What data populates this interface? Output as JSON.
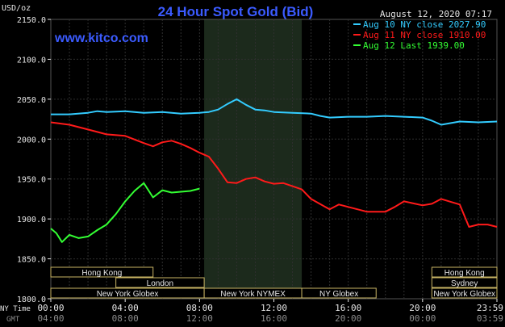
{
  "chart_data": {
    "type": "line",
    "title": "24 Hour Spot Gold (Bid)",
    "watermark": "www.kitco.com",
    "timestamp": "August 12, 2020 07:17",
    "ylabel": "USD/oz",
    "ylim": [
      1800,
      2150
    ],
    "yticks": [
      "1800.0",
      "1850.0",
      "1900.0",
      "1950.0",
      "2000.0",
      "2050.0",
      "2100.0",
      "2150.0"
    ],
    "xlim": [
      0,
      24
    ],
    "x_label_ny": "NY Time",
    "x_label_gmt": "GMT",
    "xticks_ny": [
      "00:00",
      "04:00",
      "08:00",
      "12:00",
      "16:00",
      "20:00",
      "23:59"
    ],
    "xticks_gmt": [
      "04:00",
      "08:00",
      "12:00",
      "16:00",
      "20:00",
      "00:00",
      "03:59"
    ],
    "grid": true,
    "legend_position": "top-right",
    "shaded_session": {
      "start": 8.25,
      "end": 13.5
    },
    "series": [
      {
        "name": "Aug 10 NY close 2027.90",
        "color": "#33ccff",
        "points": [
          [
            0,
            2031
          ],
          [
            1,
            2031
          ],
          [
            2,
            2033
          ],
          [
            2.5,
            2035
          ],
          [
            3,
            2034
          ],
          [
            4,
            2035
          ],
          [
            5,
            2033
          ],
          [
            6,
            2034
          ],
          [
            7,
            2032
          ],
          [
            8,
            2033
          ],
          [
            8.5,
            2034
          ],
          [
            9,
            2037
          ],
          [
            9.5,
            2044
          ],
          [
            10,
            2050
          ],
          [
            10.5,
            2043
          ],
          [
            11,
            2037
          ],
          [
            11.5,
            2036
          ],
          [
            12,
            2034
          ],
          [
            13,
            2033
          ],
          [
            14,
            2032
          ],
          [
            14.5,
            2029
          ],
          [
            15,
            2027
          ],
          [
            16,
            2028
          ],
          [
            17,
            2028
          ],
          [
            18,
            2029
          ],
          [
            19,
            2028
          ],
          [
            20,
            2027
          ],
          [
            20.5,
            2023
          ],
          [
            21,
            2018
          ],
          [
            21.5,
            2020
          ],
          [
            22,
            2022
          ],
          [
            23,
            2021
          ],
          [
            24,
            2022
          ]
        ]
      },
      {
        "name": "Aug 11 NY close 1910.00",
        "color": "#ff1a1a",
        "points": [
          [
            0,
            2021
          ],
          [
            1,
            2018
          ],
          [
            2,
            2012
          ],
          [
            3,
            2006
          ],
          [
            4,
            2004
          ],
          [
            5,
            1995
          ],
          [
            5.5,
            1991
          ],
          [
            6,
            1996
          ],
          [
            6.5,
            1998
          ],
          [
            7,
            1994
          ],
          [
            7.5,
            1989
          ],
          [
            8,
            1983
          ],
          [
            8.5,
            1978
          ],
          [
            9,
            1963
          ],
          [
            9.5,
            1946
          ],
          [
            10,
            1945
          ],
          [
            10.5,
            1950
          ],
          [
            11,
            1952
          ],
          [
            11.5,
            1947
          ],
          [
            12,
            1944
          ],
          [
            12.5,
            1945
          ],
          [
            13,
            1941
          ],
          [
            13.5,
            1937
          ],
          [
            14,
            1925
          ],
          [
            15,
            1912
          ],
          [
            15.5,
            1918
          ],
          [
            16,
            1915
          ],
          [
            17,
            1909
          ],
          [
            18,
            1909
          ],
          [
            18.5,
            1915
          ],
          [
            19,
            1922
          ],
          [
            20,
            1917
          ],
          [
            20.5,
            1919
          ],
          [
            21,
            1925
          ],
          [
            22,
            1918
          ],
          [
            22.5,
            1890
          ],
          [
            23,
            1893
          ],
          [
            23.5,
            1893
          ],
          [
            24,
            1890
          ]
        ]
      },
      {
        "name": "Aug 12 Last 1939.00",
        "color": "#33ff33",
        "points": [
          [
            0,
            1888
          ],
          [
            0.3,
            1882
          ],
          [
            0.6,
            1871
          ],
          [
            1,
            1880
          ],
          [
            1.5,
            1876
          ],
          [
            2,
            1878
          ],
          [
            2.5,
            1886
          ],
          [
            3,
            1893
          ],
          [
            3.5,
            1906
          ],
          [
            4,
            1922
          ],
          [
            4.5,
            1935
          ],
          [
            5,
            1945
          ],
          [
            5.5,
            1927
          ],
          [
            6,
            1936
          ],
          [
            6.5,
            1933
          ],
          [
            7,
            1934
          ],
          [
            7.5,
            1935
          ],
          [
            8,
            1938
          ]
        ]
      }
    ],
    "session_labels": [
      {
        "text": "Hong Kong",
        "start": 0,
        "end": 5.5,
        "row": 1
      },
      {
        "text": "Hong Kong",
        "start": 20.5,
        "end": 24,
        "row": 1
      },
      {
        "text": "London",
        "start": 3.5,
        "end": 8.25,
        "row": 2
      },
      {
        "text": "Sydney",
        "start": 20.5,
        "end": 24,
        "row": 2
      },
      {
        "text": "New York Globex",
        "start": 0,
        "end": 8.25,
        "row": 3
      },
      {
        "text": "New York NYMEX",
        "start": 8.25,
        "end": 13.5,
        "row": 3
      },
      {
        "text": "NY Globex",
        "start": 13.5,
        "end": 17.5,
        "row": 3
      },
      {
        "text": "New York Globex",
        "start": 20.5,
        "end": 24,
        "row": 3
      }
    ]
  }
}
